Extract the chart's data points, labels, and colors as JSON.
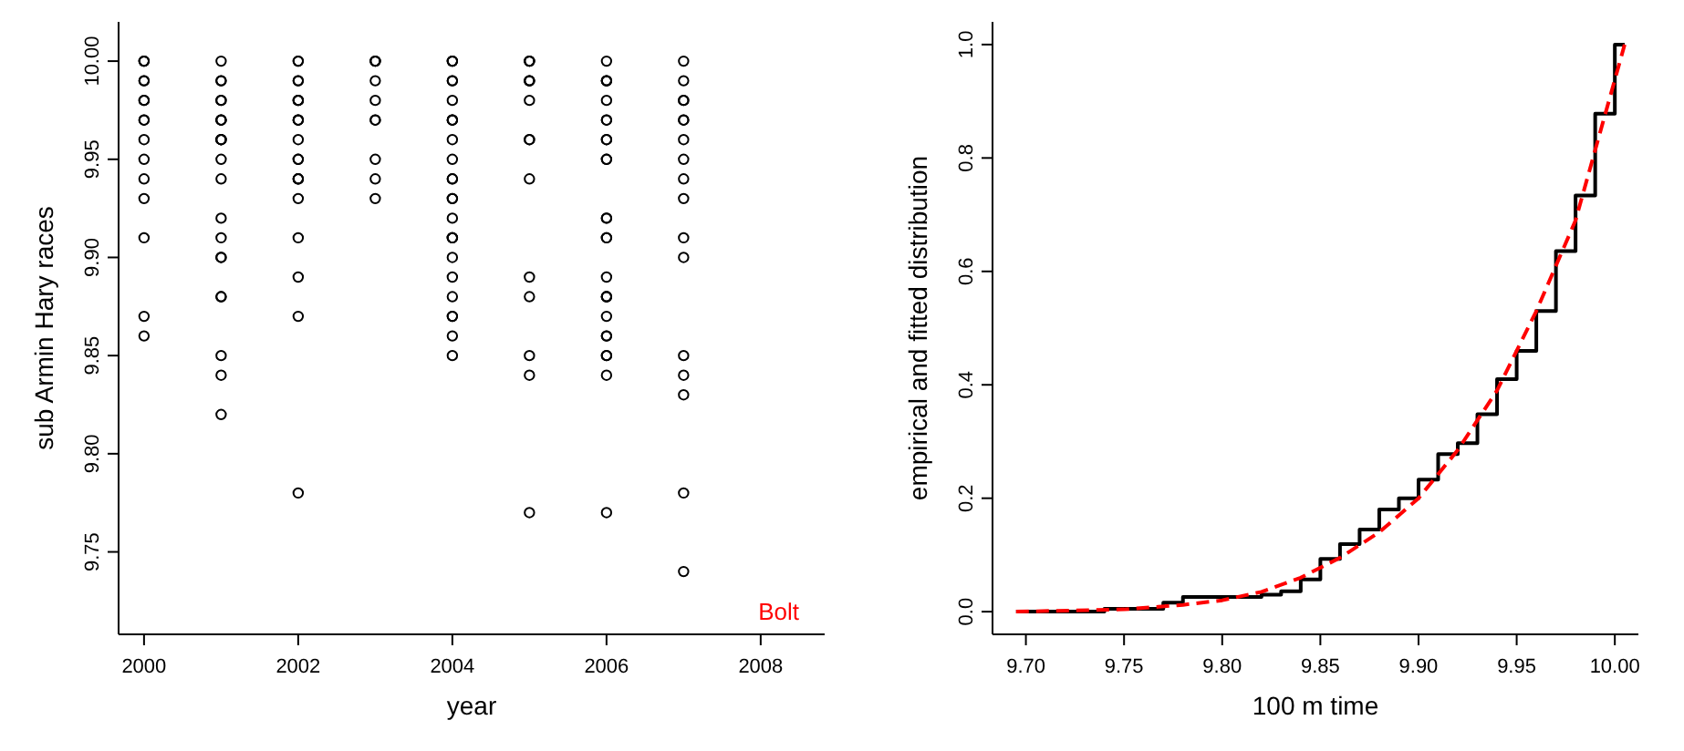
{
  "chart_data": [
    {
      "type": "scatter",
      "xlabel": "year",
      "ylabel": "sub Armin Hary races",
      "xlim": [
        1999.67,
        2008.83
      ],
      "ylim": [
        9.708,
        10.02
      ],
      "xticks": [
        2000,
        2002,
        2004,
        2006,
        2008
      ],
      "yticks": [
        9.75,
        {
          "value": 9.8,
          "label": "9.80"
        },
        9.85,
        {
          "value": 9.9,
          "label": "9.90"
        },
        9.95,
        {
          "value": 10,
          "label": "10.00"
        }
      ],
      "grid": false,
      "marker": "circle",
      "annotations": [
        "Bolt"
      ],
      "series": [
        {
          "color": "#000000",
          "x": [
            2000,
            2000,
            2000,
            2000,
            2000,
            2000,
            2000,
            2000,
            2000,
            2000,
            2000,
            2000,
            2000,
            2000,
            2000,
            2000,
            2001,
            2001,
            2001,
            2001,
            2001,
            2001,
            2001,
            2001,
            2001,
            2001,
            2001,
            2001,
            2001,
            2001,
            2001,
            2001,
            2001,
            2001,
            2001,
            2001,
            2001,
            2001,
            2002,
            2002,
            2002,
            2002,
            2002,
            2002,
            2002,
            2002,
            2002,
            2002,
            2002,
            2002,
            2002,
            2002,
            2002,
            2002,
            2002,
            2002,
            2002,
            2002,
            2002,
            2003,
            2003,
            2003,
            2003,
            2003,
            2003,
            2003,
            2003,
            2003,
            2003,
            2004,
            2004,
            2004,
            2004,
            2004,
            2004,
            2004,
            2004,
            2004,
            2004,
            2004,
            2004,
            2004,
            2004,
            2004,
            2004,
            2004,
            2004,
            2004,
            2004,
            2004,
            2004,
            2004,
            2004,
            2004,
            2004,
            2005,
            2005,
            2005,
            2005,
            2005,
            2005,
            2005,
            2005,
            2005,
            2005,
            2005,
            2005,
            2005,
            2005,
            2005,
            2006,
            2006,
            2006,
            2006,
            2006,
            2006,
            2006,
            2006,
            2006,
            2006,
            2006,
            2006,
            2006,
            2006,
            2006,
            2006,
            2006,
            2006,
            2006,
            2006,
            2006,
            2006,
            2006,
            2006,
            2006,
            2006,
            2007,
            2007,
            2007,
            2007,
            2007,
            2007,
            2007,
            2007,
            2007,
            2007,
            2007,
            2007,
            2007,
            2007,
            2007,
            2007,
            2007
          ],
          "values": [
            10.0,
            10.0,
            10.0,
            9.99,
            9.99,
            9.98,
            9.98,
            9.97,
            9.97,
            9.96,
            9.95,
            9.94,
            9.93,
            9.91,
            9.87,
            9.86,
            10.0,
            9.99,
            9.99,
            9.98,
            9.98,
            9.97,
            9.97,
            9.97,
            9.96,
            9.96,
            9.96,
            9.95,
            9.94,
            9.92,
            9.91,
            9.9,
            9.9,
            9.88,
            9.88,
            9.85,
            9.84,
            9.82,
            10.0,
            10.0,
            9.99,
            9.99,
            9.98,
            9.98,
            9.98,
            9.97,
            9.97,
            9.97,
            9.96,
            9.95,
            9.95,
            9.94,
            9.94,
            9.94,
            9.93,
            9.91,
            9.89,
            9.87,
            9.78,
            10.0,
            10.0,
            10.0,
            9.99,
            9.98,
            9.97,
            9.97,
            9.95,
            9.94,
            9.93,
            10.0,
            10.0,
            10.0,
            9.99,
            9.99,
            9.98,
            9.97,
            9.97,
            9.97,
            9.96,
            9.95,
            9.94,
            9.94,
            9.93,
            9.93,
            9.92,
            9.91,
            9.91,
            9.91,
            9.9,
            9.89,
            9.88,
            9.87,
            9.87,
            9.86,
            9.85,
            10.0,
            10.0,
            10.0,
            9.99,
            9.99,
            9.99,
            9.98,
            9.96,
            9.96,
            9.94,
            9.89,
            9.88,
            9.85,
            9.84,
            9.77,
            10.0,
            9.99,
            9.99,
            9.99,
            9.98,
            9.97,
            9.97,
            9.96,
            9.96,
            9.95,
            9.95,
            9.92,
            9.92,
            9.91,
            9.91,
            9.89,
            9.88,
            9.88,
            9.88,
            9.87,
            9.86,
            9.86,
            9.85,
            9.85,
            9.84,
            9.77,
            10.0,
            9.99,
            9.98,
            9.98,
            9.97,
            9.97,
            9.96,
            9.95,
            9.94,
            9.93,
            9.91,
            9.9,
            9.85,
            9.84,
            9.83,
            9.78,
            9.74
          ]
        }
      ]
    },
    {
      "type": "step",
      "xlabel": "100 m time",
      "ylabel": "empirical and fitted distribution",
      "xlim": [
        9.683,
        10.012
      ],
      "ylim": [
        -0.04,
        1.04
      ],
      "xticks": [
        {
          "value": 9.7,
          "label": "9.70"
        },
        9.75,
        {
          "value": 9.8,
          "label": "9.80"
        },
        9.85,
        {
          "value": 9.9,
          "label": "9.90"
        },
        9.95,
        {
          "value": 10,
          "label": "10.00"
        }
      ],
      "yticks": [
        {
          "value": 0,
          "label": "0.0"
        },
        0.2,
        0.4,
        0.6,
        0.8,
        {
          "value": 1,
          "label": "1.0"
        }
      ],
      "grid": false,
      "series": [
        {
          "color": "#000000",
          "x": [
            9.695,
            9.74,
            9.77,
            9.78,
            9.82,
            9.83,
            9.84,
            9.85,
            9.86,
            9.87,
            9.88,
            9.89,
            9.9,
            9.91,
            9.92,
            9.93,
            9.94,
            9.95,
            9.96,
            9.97,
            9.98,
            9.99,
            10.0,
            10.005
          ],
          "values": [
            0,
            0.005,
            0.016,
            0.026,
            0.03,
            0.036,
            0.057,
            0.093,
            0.119,
            0.145,
            0.18,
            0.2,
            0.233,
            0.278,
            0.297,
            0.348,
            0.41,
            0.46,
            0.53,
            0.636,
            0.734,
            0.878,
            1.0,
            1.0
          ]
        },
        {
          "type": "line",
          "color": "#ff0000",
          "line_style": "dashed",
          "x": [
            9.695,
            9.75,
            9.78,
            9.8,
            9.82,
            9.84,
            9.86,
            9.88,
            9.9,
            9.92,
            9.94,
            9.96,
            9.98,
            10.005
          ],
          "values": [
            0,
            0.004,
            0.012,
            0.02,
            0.035,
            0.06,
            0.095,
            0.14,
            0.2,
            0.285,
            0.39,
            0.53,
            0.69,
            1.0
          ]
        }
      ]
    }
  ]
}
